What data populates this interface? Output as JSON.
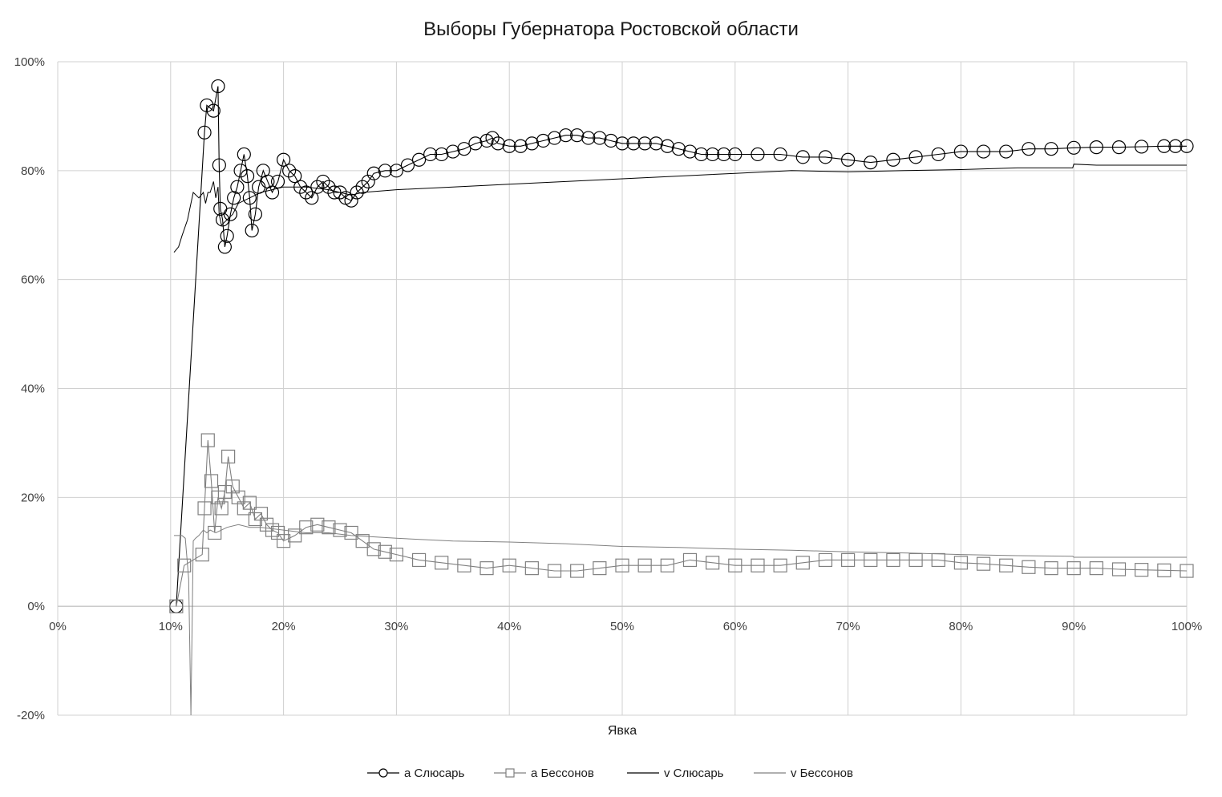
{
  "chart_data": {
    "type": "scatter",
    "title": "Выборы Губернатора Ростовской области",
    "xlabel": "Явка",
    "ylabel": "",
    "xlim": [
      0,
      100
    ],
    "ylim": [
      -20,
      100
    ],
    "x_ticks": [
      "0%",
      "10%",
      "20%",
      "30%",
      "40%",
      "50%",
      "60%",
      "70%",
      "80%",
      "90%",
      "100%"
    ],
    "y_ticks": [
      "-20%",
      "0%",
      "20%",
      "40%",
      "60%",
      "80%",
      "100%"
    ],
    "grid": true,
    "legend_position": "bottom",
    "series": [
      {
        "name": "a Слюсарь",
        "marker": "circle",
        "color": "#000000",
        "x": [
          10.5,
          13.0,
          13.2,
          13.8,
          14.2,
          14.3,
          14.4,
          14.6,
          14.8,
          15.0,
          15.3,
          15.6,
          15.9,
          16.2,
          16.5,
          16.8,
          17.0,
          17.2,
          17.5,
          17.8,
          18.2,
          18.6,
          19.0,
          19.5,
          20.0,
          20.5,
          21.0,
          21.5,
          22.0,
          22.5,
          23.0,
          23.5,
          24.0,
          24.5,
          25.0,
          25.5,
          26.0,
          26.5,
          27.0,
          27.5,
          28.0,
          29.0,
          30.0,
          31.0,
          32.0,
          33.0,
          34.0,
          35.0,
          36.0,
          37.0,
          38.0,
          38.5,
          39.0,
          40.0,
          41.0,
          42.0,
          43.0,
          44.0,
          45.0,
          46.0,
          47.0,
          48.0,
          49.0,
          50.0,
          51.0,
          52.0,
          53.0,
          54.0,
          55.0,
          56.0,
          57.0,
          58.0,
          59.0,
          60.0,
          62.0,
          64.0,
          66.0,
          68.0,
          70.0,
          72.0,
          74.0,
          76.0,
          78.0,
          80.0,
          82.0,
          84.0,
          86.0,
          88.0,
          90.0,
          92.0,
          94.0,
          96.0,
          98.0,
          99.0,
          100.0
        ],
        "values": [
          0,
          87,
          92,
          91,
          95.5,
          81,
          73,
          71,
          66,
          68,
          72,
          75,
          77,
          80,
          83,
          79,
          75,
          69,
          72,
          77,
          80,
          78,
          76,
          78,
          82,
          80,
          79,
          77,
          76,
          75,
          77,
          78,
          77,
          76,
          76,
          75,
          74.5,
          76,
          77,
          78,
          79.5,
          80,
          80,
          81,
          82,
          83,
          83,
          83.5,
          84,
          85,
          85.5,
          86,
          85,
          84.5,
          84.5,
          85,
          85.5,
          86,
          86.5,
          86.5,
          86,
          86,
          85.5,
          85,
          85,
          85,
          85,
          84.5,
          84,
          83.5,
          83,
          83,
          83,
          83,
          83,
          83,
          82.5,
          82.5,
          82,
          81.5,
          82,
          82.5,
          83,
          83.5,
          83.5,
          83.5,
          84,
          84,
          84.2,
          84.3,
          84.3,
          84.4,
          84.5,
          84.5,
          84.5
        ]
      },
      {
        "name": "a Бессонов",
        "marker": "square",
        "color": "#808080",
        "x": [
          10.5,
          11.2,
          12.8,
          13.0,
          13.3,
          13.6,
          13.9,
          14.2,
          14.5,
          14.8,
          15.1,
          15.5,
          16.0,
          16.5,
          17.0,
          17.5,
          18.0,
          18.5,
          19.0,
          19.5,
          20.0,
          21.0,
          22.0,
          23.0,
          24.0,
          25.0,
          26.0,
          27.0,
          28.0,
          29.0,
          30.0,
          32.0,
          34.0,
          36.0,
          38.0,
          40.0,
          42.0,
          44.0,
          46.0,
          48.0,
          50.0,
          52.0,
          54.0,
          56.0,
          58.0,
          60.0,
          62.0,
          64.0,
          66.0,
          68.0,
          70.0,
          72.0,
          74.0,
          76.0,
          78.0,
          80.0,
          82.0,
          84.0,
          86.0,
          88.0,
          90.0,
          92.0,
          94.0,
          96.0,
          98.0,
          100.0
        ],
        "values": [
          0,
          7.5,
          9.5,
          18,
          30.5,
          23,
          13.5,
          20,
          18,
          21,
          27.5,
          22,
          20,
          18,
          19,
          16,
          17,
          15,
          14,
          13.5,
          12,
          13,
          14.5,
          15,
          14.5,
          14,
          13.5,
          12,
          10.5,
          10,
          9.5,
          8.5,
          8,
          7.5,
          7,
          7.5,
          7,
          6.5,
          6.5,
          7,
          7.5,
          7.5,
          7.5,
          8.5,
          8,
          7.5,
          7.5,
          7.5,
          8,
          8.5,
          8.5,
          8.5,
          8.5,
          8.5,
          8.5,
          8,
          7.8,
          7.5,
          7.2,
          7,
          7,
          7,
          6.8,
          6.7,
          6.6,
          6.5
        ]
      },
      {
        "name": "v Слюсарь",
        "marker": "line",
        "color": "#000000",
        "x": [
          10.3,
          10.7,
          11.0,
          11.5,
          11.7,
          12.0,
          12.5,
          12.9,
          13.1,
          13.3,
          13.5,
          13.8,
          14.0,
          14.2,
          14.3,
          14.5,
          15.0,
          15.5,
          16.0,
          17.0,
          18.0,
          19.0,
          20.0,
          22.0,
          24.0,
          26.0,
          27.0,
          30.0,
          35.0,
          40.0,
          45.0,
          50.0,
          55.0,
          60.0,
          65.0,
          70.0,
          75.0,
          80.0,
          85.0,
          89.9,
          90.0,
          92.0,
          95.0,
          100.0
        ],
        "values": [
          65,
          66,
          68,
          71,
          73,
          76,
          75,
          76,
          74,
          76,
          76,
          78,
          75,
          77,
          72,
          70,
          71,
          72,
          74,
          75,
          76,
          76.5,
          77,
          77,
          76.5,
          75.5,
          76,
          76.5,
          77,
          77.5,
          78,
          78.5,
          79,
          79.5,
          80,
          79.8,
          80,
          80.2,
          80.5,
          80.5,
          81.2,
          81,
          81,
          81
        ]
      },
      {
        "name": "v Бессонов",
        "marker": "line",
        "color": "#808080",
        "x": [
          10.3,
          11.0,
          11.3,
          11.6,
          11.8,
          12.0,
          12.2,
          12.5,
          12.9,
          13.2,
          13.5,
          14.0,
          14.5,
          15.0,
          16.0,
          17.0,
          18.0,
          20.0,
          22.0,
          24.0,
          26.0,
          30.0,
          35.0,
          40.0,
          45.0,
          50.0,
          55.0,
          60.0,
          65.0,
          70.0,
          75.0,
          80.0,
          85.0,
          89.9,
          90.0,
          95.0,
          100.0
        ],
        "values": [
          13,
          13,
          12.5,
          5,
          -20,
          12,
          12.5,
          13,
          14,
          13.5,
          14,
          13.5,
          14,
          14.5,
          15,
          14.5,
          14.5,
          14,
          13.5,
          13.5,
          13,
          12.5,
          12,
          11.8,
          11.5,
          11,
          10.8,
          10.5,
          10.3,
          10,
          9.8,
          9.5,
          9.3,
          9.2,
          9,
          9,
          9
        ]
      }
    ]
  }
}
